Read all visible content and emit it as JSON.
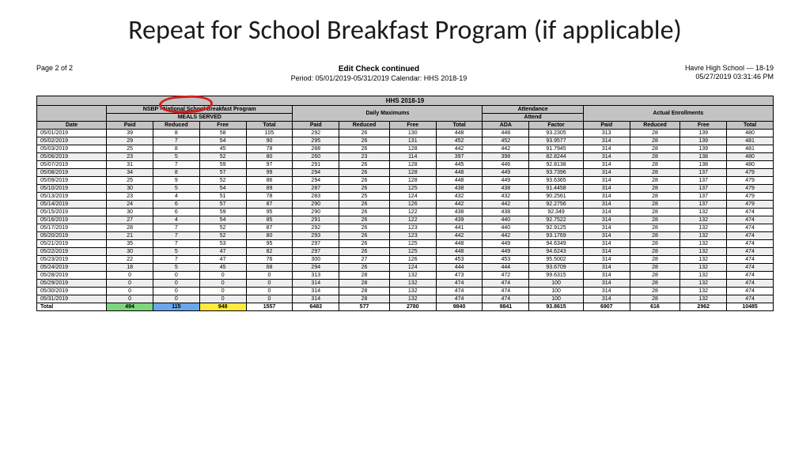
{
  "slide": {
    "title": "Repeat for School Breakfast Program (if applicable)"
  },
  "report": {
    "page_label": "Page 2 of 2",
    "title": "Edit Check  continued",
    "period": "Period: 05/01/2019-05/31/2019  Calendar: HHS 2018-19",
    "school": "Havre High School — 18-19",
    "timestamp": "05/27/2019 03:31:46 PM",
    "super_header": "HHS 2018-19",
    "group_headers": {
      "nsbp": "NSBP - National School Breakfast Program",
      "meals": "MEALS SERVED",
      "daily_max": "Daily Maximums",
      "attendance": "Attendance",
      "attend_sub": "Attend",
      "actual": "Actual Enrollments"
    },
    "col_headers": [
      "Date",
      "Paid",
      "Reduced",
      "Free",
      "Total",
      "Paid",
      "Reduced",
      "Free",
      "Total",
      "ADA",
      "Factor",
      "Paid",
      "Reduced",
      "Free",
      "Total"
    ],
    "rows": [
      [
        "05/01/2019",
        "39",
        "8",
        "58",
        "105",
        "292",
        "26",
        "130",
        "448",
        "448",
        "93.2305",
        "313",
        "28",
        "139",
        "480"
      ],
      [
        "05/02/2019",
        "29",
        "7",
        "54",
        "90",
        "295",
        "26",
        "131",
        "452",
        "452",
        "93.9577",
        "314",
        "28",
        "139",
        "481"
      ],
      [
        "05/03/2019",
        "25",
        "8",
        "45",
        "78",
        "288",
        "26",
        "128",
        "442",
        "442",
        "91.7945",
        "314",
        "28",
        "139",
        "481"
      ],
      [
        "05/06/2019",
        "23",
        "5",
        "52",
        "80",
        "260",
        "23",
        "114",
        "397",
        "398",
        "82.8244",
        "314",
        "28",
        "138",
        "480"
      ],
      [
        "05/07/2019",
        "31",
        "7",
        "59",
        "97",
        "291",
        "26",
        "128",
        "445",
        "446",
        "92.8138",
        "314",
        "28",
        "138",
        "480"
      ],
      [
        "05/08/2019",
        "34",
        "8",
        "57",
        "99",
        "294",
        "26",
        "128",
        "448",
        "449",
        "93.7396",
        "314",
        "28",
        "137",
        "479"
      ],
      [
        "05/09/2019",
        "25",
        "9",
        "52",
        "86",
        "294",
        "26",
        "128",
        "448",
        "449",
        "93.6365",
        "314",
        "28",
        "137",
        "479"
      ],
      [
        "05/10/2019",
        "30",
        "5",
        "54",
        "89",
        "287",
        "26",
        "125",
        "438",
        "438",
        "91.4458",
        "314",
        "28",
        "137",
        "479"
      ],
      [
        "05/13/2019",
        "23",
        "4",
        "51",
        "78",
        "283",
        "25",
        "124",
        "432",
        "432",
        "90.2561",
        "314",
        "28",
        "137",
        "479"
      ],
      [
        "05/14/2019",
        "24",
        "6",
        "57",
        "87",
        "290",
        "26",
        "126",
        "442",
        "442",
        "92.2756",
        "314",
        "28",
        "137",
        "479"
      ],
      [
        "05/15/2019",
        "30",
        "6",
        "59",
        "95",
        "290",
        "26",
        "122",
        "438",
        "438",
        "92.349",
        "314",
        "28",
        "132",
        "474"
      ],
      [
        "05/16/2019",
        "27",
        "4",
        "54",
        "85",
        "291",
        "26",
        "122",
        "439",
        "440",
        "92.7522",
        "314",
        "28",
        "132",
        "474"
      ],
      [
        "05/17/2019",
        "28",
        "7",
        "52",
        "87",
        "292",
        "26",
        "123",
        "441",
        "440",
        "92.9125",
        "314",
        "28",
        "132",
        "474"
      ],
      [
        "05/20/2019",
        "21",
        "7",
        "52",
        "80",
        "293",
        "26",
        "123",
        "442",
        "442",
        "93.1769",
        "314",
        "28",
        "132",
        "474"
      ],
      [
        "05/21/2019",
        "35",
        "7",
        "53",
        "95",
        "297",
        "26",
        "125",
        "448",
        "449",
        "94.6349",
        "314",
        "28",
        "132",
        "474"
      ],
      [
        "05/22/2019",
        "30",
        "5",
        "47",
        "82",
        "297",
        "26",
        "125",
        "448",
        "449",
        "94.6243",
        "314",
        "28",
        "132",
        "474"
      ],
      [
        "05/23/2019",
        "22",
        "7",
        "47",
        "76",
        "300",
        "27",
        "126",
        "453",
        "453",
        "95.5002",
        "314",
        "28",
        "132",
        "474"
      ],
      [
        "05/24/2019",
        "18",
        "5",
        "45",
        "68",
        "294",
        "26",
        "124",
        "444",
        "444",
        "93.6709",
        "314",
        "28",
        "132",
        "474"
      ],
      [
        "05/28/2019",
        "0",
        "0",
        "0",
        "0",
        "313",
        "28",
        "132",
        "473",
        "472",
        "99.6315",
        "314",
        "28",
        "132",
        "474"
      ],
      [
        "05/29/2019",
        "0",
        "0",
        "0",
        "0",
        "314",
        "28",
        "132",
        "474",
        "474",
        "100",
        "314",
        "28",
        "132",
        "474"
      ],
      [
        "05/30/2019",
        "0",
        "0",
        "0",
        "0",
        "314",
        "28",
        "132",
        "474",
        "474",
        "100",
        "314",
        "28",
        "132",
        "474"
      ],
      [
        "05/31/2019",
        "0",
        "0",
        "0",
        "0",
        "314",
        "28",
        "132",
        "474",
        "474",
        "100",
        "314",
        "28",
        "132",
        "474"
      ]
    ],
    "total": [
      "Total",
      "494",
      "115",
      "948",
      "1557",
      "6483",
      "577",
      "2780",
      "9840",
      "9841",
      "93.8615",
      "6907",
      "616",
      "2962",
      "10485"
    ]
  },
  "style": {
    "alt_row_bg": "#eeeeee",
    "header_bg": "#c3c3c3",
    "highlight_green": "#7dd67d",
    "highlight_blue": "#6aa6ea",
    "highlight_yellow": "#ffea3d",
    "circle_color": "#d42020"
  }
}
